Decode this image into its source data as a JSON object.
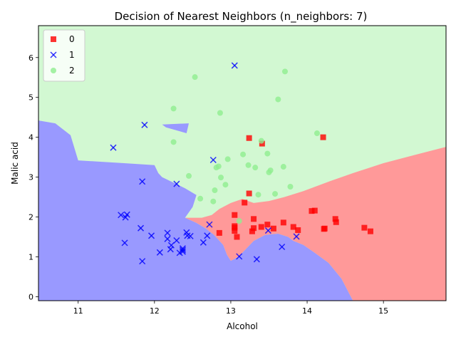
{
  "chart_data": {
    "type": "scatter",
    "title": "Decision of Nearest Neighbors (n_neighbors: 7)",
    "xlabel": "Alcohol",
    "ylabel": "Malic acid",
    "xlim": [
      10.48,
      15.82
    ],
    "ylim": [
      -0.1,
      6.8
    ],
    "xticks": [
      11,
      12,
      13,
      14,
      15
    ],
    "yticks": [
      0,
      1,
      2,
      3,
      4,
      5,
      6
    ],
    "grid": false,
    "legend_position": "top-left",
    "regions": [
      {
        "class": "0",
        "color": "#ff9999",
        "boundary": [
          [
            13.0,
            0.9
          ],
          [
            13.1,
            1.0
          ],
          [
            13.2,
            1.2
          ],
          [
            13.3,
            1.4
          ],
          [
            13.45,
            1.55
          ],
          [
            13.62,
            1.58
          ],
          [
            13.75,
            1.5
          ],
          [
            13.82,
            1.4
          ],
          [
            13.95,
            1.3
          ],
          [
            14.1,
            1.1
          ],
          [
            14.28,
            0.85
          ],
          [
            14.45,
            0.45
          ],
          [
            14.6,
            -0.1
          ],
          [
            15.82,
            -0.1
          ],
          [
            15.82,
            3.76
          ],
          [
            15.4,
            3.55
          ],
          [
            15.0,
            3.35
          ],
          [
            14.6,
            3.1
          ],
          [
            14.3,
            2.9
          ],
          [
            13.95,
            2.65
          ],
          [
            13.7,
            2.5
          ],
          [
            13.5,
            2.4
          ],
          [
            13.3,
            2.35
          ],
          [
            13.15,
            2.45
          ],
          [
            13.0,
            2.35
          ],
          [
            12.85,
            2.2
          ],
          [
            12.75,
            2.05
          ],
          [
            12.62,
            1.98
          ],
          [
            12.5,
            1.98
          ],
          [
            12.4,
            1.98
          ],
          [
            12.55,
            1.85
          ],
          [
            12.68,
            1.7
          ],
          [
            12.78,
            1.55
          ],
          [
            12.9,
            1.3
          ],
          [
            12.95,
            1.05
          ]
        ]
      },
      {
        "class": "1",
        "color": "#9999ff",
        "boundary": [
          [
            10.48,
            -0.1
          ],
          [
            14.6,
            -0.1
          ],
          [
            14.45,
            0.45
          ],
          [
            14.28,
            0.85
          ],
          [
            14.1,
            1.1
          ],
          [
            13.95,
            1.3
          ],
          [
            13.82,
            1.4
          ],
          [
            13.75,
            1.5
          ],
          [
            13.62,
            1.58
          ],
          [
            13.45,
            1.55
          ],
          [
            13.3,
            1.4
          ],
          [
            13.2,
            1.2
          ],
          [
            13.1,
            1.0
          ],
          [
            13.0,
            0.9
          ],
          [
            12.95,
            1.05
          ],
          [
            12.9,
            1.3
          ],
          [
            12.78,
            1.55
          ],
          [
            12.68,
            1.7
          ],
          [
            12.55,
            1.85
          ],
          [
            12.4,
            1.98
          ],
          [
            12.5,
            2.25
          ],
          [
            12.55,
            2.55
          ],
          [
            12.4,
            2.72
          ],
          [
            12.1,
            3.0
          ],
          [
            12.05,
            3.1
          ],
          [
            12.0,
            3.3
          ],
          [
            11.6,
            3.35
          ],
          [
            11.0,
            3.42
          ],
          [
            10.9,
            4.05
          ],
          [
            10.7,
            4.35
          ],
          [
            10.48,
            4.42
          ]
        ]
      },
      {
        "class": "1",
        "color": "#9999ff",
        "boundary": [
          [
            12.1,
            4.32
          ],
          [
            12.45,
            4.35
          ],
          [
            12.42,
            4.1
          ],
          [
            12.15,
            4.25
          ]
        ]
      }
    ],
    "series": [
      {
        "name": "0",
        "color": "#ff0000",
        "marker": "square",
        "points": [
          [
            13.05,
            1.73
          ],
          [
            13.05,
            2.05
          ],
          [
            13.05,
            1.65
          ],
          [
            13.08,
            1.5
          ],
          [
            13.05,
            1.77
          ],
          [
            12.85,
            1.6
          ],
          [
            13.18,
            2.36
          ],
          [
            13.24,
            2.59
          ],
          [
            13.24,
            3.98
          ],
          [
            13.28,
            1.64
          ],
          [
            13.3,
            1.95
          ],
          [
            13.3,
            1.72
          ],
          [
            13.4,
            1.75
          ],
          [
            13.41,
            3.84
          ],
          [
            13.48,
            1.81
          ],
          [
            13.56,
            1.71
          ],
          [
            13.69,
            1.86
          ],
          [
            13.82,
            1.75
          ],
          [
            13.88,
            1.67
          ],
          [
            14.06,
            2.15
          ],
          [
            14.1,
            2.16
          ],
          [
            14.21,
            4.0
          ],
          [
            14.22,
            1.7
          ],
          [
            14.23,
            1.71
          ],
          [
            14.37,
            1.95
          ],
          [
            14.38,
            1.87
          ],
          [
            14.75,
            1.73
          ],
          [
            14.83,
            1.64
          ]
        ]
      },
      {
        "name": "1",
        "color": "#0000ff",
        "marker": "x",
        "points": [
          [
            11.46,
            3.74
          ],
          [
            11.56,
            2.05
          ],
          [
            11.61,
            1.35
          ],
          [
            11.62,
            1.99
          ],
          [
            11.64,
            2.06
          ],
          [
            11.82,
            1.72
          ],
          [
            11.84,
            0.89
          ],
          [
            11.84,
            2.89
          ],
          [
            11.87,
            4.31
          ],
          [
            11.96,
            1.53
          ],
          [
            12.07,
            1.11
          ],
          [
            12.17,
            1.45
          ],
          [
            12.17,
            1.6
          ],
          [
            12.21,
            1.19
          ],
          [
            12.22,
            1.29
          ],
          [
            12.29,
            2.83
          ],
          [
            12.29,
            1.41
          ],
          [
            12.33,
            1.1
          ],
          [
            12.37,
            1.13
          ],
          [
            12.37,
            1.17
          ],
          [
            12.37,
            1.21
          ],
          [
            12.42,
            1.61
          ],
          [
            12.43,
            1.53
          ],
          [
            12.47,
            1.52
          ],
          [
            12.64,
            1.36
          ],
          [
            12.69,
            1.53
          ],
          [
            12.72,
            1.81
          ],
          [
            12.77,
            3.43
          ],
          [
            13.05,
            5.8
          ],
          [
            13.11,
            1.01
          ],
          [
            13.34,
            0.94
          ],
          [
            13.49,
            1.66
          ],
          [
            13.67,
            1.25
          ],
          [
            13.86,
            1.51
          ]
        ]
      },
      {
        "name": "2",
        "color": "#90ee90",
        "marker": "circle",
        "points": [
          [
            12.25,
            3.88
          ],
          [
            12.25,
            4.72
          ],
          [
            12.45,
            3.03
          ],
          [
            12.53,
            5.51
          ],
          [
            12.6,
            2.46
          ],
          [
            12.77,
            2.39
          ],
          [
            12.79,
            2.67
          ],
          [
            12.81,
            3.24
          ],
          [
            12.84,
            3.27
          ],
          [
            12.86,
            4.61
          ],
          [
            12.87,
            2.99
          ],
          [
            12.93,
            2.81
          ],
          [
            12.96,
            3.45
          ],
          [
            13.11,
            1.9
          ],
          [
            13.16,
            3.57
          ],
          [
            13.23,
            3.3
          ],
          [
            13.32,
            3.24
          ],
          [
            13.36,
            2.56
          ],
          [
            13.4,
            3.91
          ],
          [
            13.48,
            3.59
          ],
          [
            13.5,
            3.12
          ],
          [
            13.52,
            3.17
          ],
          [
            13.58,
            2.58
          ],
          [
            13.62,
            4.95
          ],
          [
            13.69,
            3.26
          ],
          [
            13.71,
            5.65
          ],
          [
            13.78,
            2.76
          ],
          [
            14.13,
            4.1
          ]
        ]
      }
    ]
  }
}
